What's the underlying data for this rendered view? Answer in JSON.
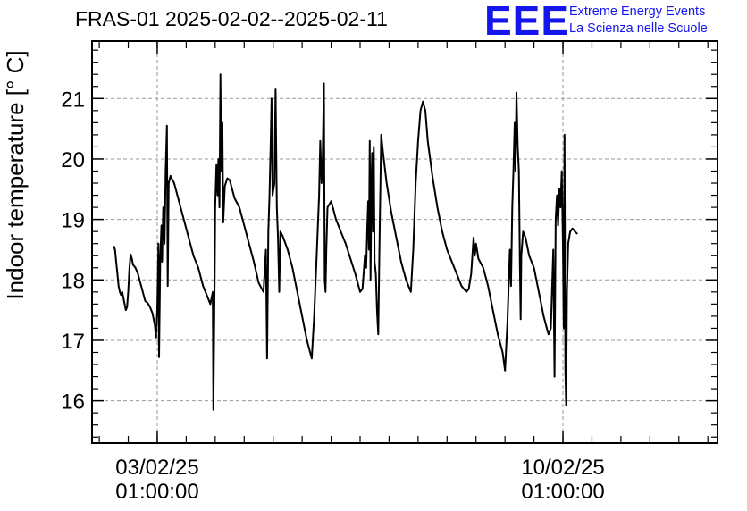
{
  "header": {
    "title": "FRAS-01 2025-02-02--2025-02-11",
    "logo_mark": "EEE",
    "logo_line1": "Extreme Energy Events",
    "logo_line2": "La Scienza nelle Scuole"
  },
  "colors": {
    "line": "#000000",
    "grid": "#999999",
    "logo": "#1515ee"
  },
  "chart_data": {
    "type": "line",
    "title": "FRAS-01 2025-02-02--2025-02-11",
    "ylabel": "Indoor temperature [° C]",
    "xlabel": "",
    "ylim": [
      15.3,
      21.95
    ],
    "xlim": [
      "2025-02-01T22:00",
      "2025-02-12T17:00"
    ],
    "yticks": [
      16,
      17,
      18,
      19,
      20,
      21
    ],
    "ytick_labels": [
      "16",
      "17",
      "18",
      "19",
      "20",
      "21"
    ],
    "xticks": [
      {
        "x": "2025-02-03T01:00",
        "line1": "03/02/25",
        "line2": "01:00:00"
      },
      {
        "x": "2025-02-10T01:00",
        "line1": "10/02/25",
        "line2": "01:00:00"
      }
    ],
    "grid": true,
    "series": [
      {
        "points": [
          [
            "2025-02-02T07:00",
            18.56
          ],
          [
            "2025-02-02T07:30",
            18.5
          ],
          [
            "2025-02-02T08:00",
            18.3
          ],
          [
            "2025-02-02T08:30",
            18.1
          ],
          [
            "2025-02-02T09:00",
            17.9
          ],
          [
            "2025-02-02T09:30",
            17.8
          ],
          [
            "2025-02-02T10:00",
            17.75
          ],
          [
            "2025-02-02T10:30",
            17.8
          ],
          [
            "2025-02-02T11:00",
            17.7
          ],
          [
            "2025-02-02T11:30",
            17.6
          ],
          [
            "2025-02-02T12:00",
            17.5
          ],
          [
            "2025-02-02T12:30",
            17.55
          ],
          [
            "2025-02-02T13:00",
            17.8
          ],
          [
            "2025-02-02T13:30",
            18.2
          ],
          [
            "2025-02-02T14:00",
            18.42
          ],
          [
            "2025-02-02T14:30",
            18.35
          ],
          [
            "2025-02-02T15:00",
            18.25
          ],
          [
            "2025-02-02T16:00",
            18.2
          ],
          [
            "2025-02-02T17:00",
            18.1
          ],
          [
            "2025-02-02T18:00",
            17.95
          ],
          [
            "2025-02-02T19:00",
            17.8
          ],
          [
            "2025-02-02T20:00",
            17.65
          ],
          [
            "2025-02-02T21:00",
            17.62
          ],
          [
            "2025-02-02T22:00",
            17.55
          ],
          [
            "2025-02-02T23:00",
            17.45
          ],
          [
            "2025-02-03T00:00",
            17.25
          ],
          [
            "2025-02-03T00:30",
            17.05
          ],
          [
            "2025-02-03T01:00",
            17.5
          ],
          [
            "2025-02-03T01:30",
            18.6
          ],
          [
            "2025-02-03T01:45",
            16.72
          ],
          [
            "2025-02-03T02:15",
            18.4
          ],
          [
            "2025-02-03T02:45",
            18.9
          ],
          [
            "2025-02-03T03:00",
            18.3
          ],
          [
            "2025-02-03T03:30",
            19.2
          ],
          [
            "2025-02-03T04:00",
            18.6
          ],
          [
            "2025-02-03T04:30",
            19.8
          ],
          [
            "2025-02-03T05:00",
            20.55
          ],
          [
            "2025-02-03T05:20",
            17.9
          ],
          [
            "2025-02-03T05:45",
            19.6
          ],
          [
            "2025-02-03T06:30",
            19.72
          ],
          [
            "2025-02-03T08:00",
            19.6
          ],
          [
            "2025-02-03T10:00",
            19.3
          ],
          [
            "2025-02-03T12:00",
            19.0
          ],
          [
            "2025-02-03T14:00",
            18.7
          ],
          [
            "2025-02-03T16:00",
            18.4
          ],
          [
            "2025-02-03T18:00",
            18.2
          ],
          [
            "2025-02-03T20:00",
            17.9
          ],
          [
            "2025-02-03T22:00",
            17.7
          ],
          [
            "2025-02-03T23:00",
            17.6
          ],
          [
            "2025-02-04T00:00",
            17.8
          ],
          [
            "2025-02-04T00:15",
            15.85
          ],
          [
            "2025-02-04T00:45",
            18.0
          ],
          [
            "2025-02-04T01:00",
            19.2
          ],
          [
            "2025-02-04T01:30",
            19.9
          ],
          [
            "2025-02-04T02:00",
            19.4
          ],
          [
            "2025-02-04T02:20",
            20.0
          ],
          [
            "2025-02-04T02:45",
            19.2
          ],
          [
            "2025-02-04T03:10",
            21.4
          ],
          [
            "2025-02-04T03:30",
            19.8
          ],
          [
            "2025-02-04T04:00",
            20.6
          ],
          [
            "2025-02-04T04:20",
            18.95
          ],
          [
            "2025-02-04T05:00",
            19.55
          ],
          [
            "2025-02-04T06:00",
            19.68
          ],
          [
            "2025-02-04T07:00",
            19.65
          ],
          [
            "2025-02-04T09:00",
            19.35
          ],
          [
            "2025-02-04T11:00",
            19.2
          ],
          [
            "2025-02-04T13:00",
            18.9
          ],
          [
            "2025-02-04T15:00",
            18.6
          ],
          [
            "2025-02-04T17:00",
            18.3
          ],
          [
            "2025-02-04T19:00",
            17.95
          ],
          [
            "2025-02-04T21:00",
            17.8
          ],
          [
            "2025-02-04T22:00",
            18.5
          ],
          [
            "2025-02-04T22:30",
            16.7
          ],
          [
            "2025-02-04T23:00",
            18.8
          ],
          [
            "2025-02-04T23:30",
            19.4
          ],
          [
            "2025-02-05T00:00",
            20.3
          ],
          [
            "2025-02-05T00:20",
            21.0
          ],
          [
            "2025-02-05T00:45",
            19.4
          ],
          [
            "2025-02-05T01:30",
            19.6
          ],
          [
            "2025-02-05T02:00",
            21.15
          ],
          [
            "2025-02-05T02:30",
            19.2
          ],
          [
            "2025-02-05T03:00",
            18.7
          ],
          [
            "2025-02-05T03:30",
            17.8
          ],
          [
            "2025-02-05T04:00",
            18.8
          ],
          [
            "2025-02-05T05:00",
            18.72
          ],
          [
            "2025-02-05T07:00",
            18.5
          ],
          [
            "2025-02-05T09:00",
            18.2
          ],
          [
            "2025-02-05T11:00",
            17.8
          ],
          [
            "2025-02-05T13:00",
            17.4
          ],
          [
            "2025-02-05T15:00",
            17.0
          ],
          [
            "2025-02-05T17:00",
            16.7
          ],
          [
            "2025-02-05T18:00",
            17.4
          ],
          [
            "2025-02-05T19:00",
            18.4
          ],
          [
            "2025-02-05T20:00",
            19.4
          ],
          [
            "2025-02-05T20:30",
            20.3
          ],
          [
            "2025-02-05T21:00",
            19.6
          ],
          [
            "2025-02-05T21:30",
            20.0
          ],
          [
            "2025-02-05T22:00",
            21.25
          ],
          [
            "2025-02-05T22:20",
            18.0
          ],
          [
            "2025-02-05T22:40",
            17.8
          ],
          [
            "2025-02-05T23:00",
            18.5
          ],
          [
            "2025-02-05T23:30",
            19.2
          ],
          [
            "2025-02-06T01:00",
            19.3
          ],
          [
            "2025-02-06T03:00",
            19.0
          ],
          [
            "2025-02-06T05:00",
            18.8
          ],
          [
            "2025-02-06T07:00",
            18.6
          ],
          [
            "2025-02-06T09:00",
            18.35
          ],
          [
            "2025-02-06T11:00",
            18.1
          ],
          [
            "2025-02-06T13:00",
            17.8
          ],
          [
            "2025-02-06T14:00",
            17.85
          ],
          [
            "2025-02-06T15:00",
            18.4
          ],
          [
            "2025-02-06T15:30",
            18.2
          ],
          [
            "2025-02-06T16:00",
            18.9
          ],
          [
            "2025-02-06T16:20",
            19.3
          ],
          [
            "2025-02-06T16:40",
            18.5
          ],
          [
            "2025-02-06T17:00",
            20.3
          ],
          [
            "2025-02-06T17:20",
            18.0
          ],
          [
            "2025-02-06T17:40",
            19.5
          ],
          [
            "2025-02-06T18:00",
            20.1
          ],
          [
            "2025-02-06T18:20",
            18.8
          ],
          [
            "2025-02-06T18:40",
            20.2
          ],
          [
            "2025-02-06T19:00",
            18.3
          ],
          [
            "2025-02-06T19:30",
            18.1
          ],
          [
            "2025-02-06T20:00",
            17.5
          ],
          [
            "2025-02-06T20:30",
            17.1
          ],
          [
            "2025-02-06T21:00",
            18.5
          ],
          [
            "2025-02-06T21:45",
            20.4
          ],
          [
            "2025-02-06T22:30",
            20.1
          ],
          [
            "2025-02-07T00:00",
            19.6
          ],
          [
            "2025-02-07T02:00",
            19.1
          ],
          [
            "2025-02-07T04:00",
            18.7
          ],
          [
            "2025-02-07T06:00",
            18.3
          ],
          [
            "2025-02-07T08:00",
            18.0
          ],
          [
            "2025-02-07T10:00",
            17.8
          ],
          [
            "2025-02-07T11:00",
            18.5
          ],
          [
            "2025-02-07T12:00",
            19.6
          ],
          [
            "2025-02-07T13:00",
            20.3
          ],
          [
            "2025-02-07T14:00",
            20.8
          ],
          [
            "2025-02-07T15:00",
            20.95
          ],
          [
            "2025-02-07T16:00",
            20.8
          ],
          [
            "2025-02-07T17:00",
            20.3
          ],
          [
            "2025-02-07T19:00",
            19.7
          ],
          [
            "2025-02-07T21:00",
            19.2
          ],
          [
            "2025-02-07T23:00",
            18.8
          ],
          [
            "2025-02-08T01:00",
            18.5
          ],
          [
            "2025-02-08T03:00",
            18.3
          ],
          [
            "2025-02-08T05:00",
            18.1
          ],
          [
            "2025-02-08T07:00",
            17.9
          ],
          [
            "2025-02-08T09:00",
            17.8
          ],
          [
            "2025-02-08T10:00",
            17.85
          ],
          [
            "2025-02-08T11:00",
            18.1
          ],
          [
            "2025-02-08T12:00",
            18.7
          ],
          [
            "2025-02-08T12:30",
            18.4
          ],
          [
            "2025-02-08T13:00",
            18.6
          ],
          [
            "2025-02-08T14:00",
            18.35
          ],
          [
            "2025-02-08T16:00",
            18.2
          ],
          [
            "2025-02-08T18:00",
            17.9
          ],
          [
            "2025-02-08T20:00",
            17.5
          ],
          [
            "2025-02-08T22:00",
            17.1
          ],
          [
            "2025-02-09T00:00",
            16.8
          ],
          [
            "2025-02-09T01:00",
            16.5
          ],
          [
            "2025-02-09T02:00",
            17.3
          ],
          [
            "2025-02-09T03:00",
            18.5
          ],
          [
            "2025-02-09T03:30",
            17.9
          ],
          [
            "2025-02-09T04:00",
            19.2
          ],
          [
            "2025-02-09T04:30",
            19.8
          ],
          [
            "2025-02-09T05:00",
            20.6
          ],
          [
            "2025-02-09T05:20",
            19.8
          ],
          [
            "2025-02-09T05:45",
            21.1
          ],
          [
            "2025-02-09T06:15",
            20.2
          ],
          [
            "2025-02-09T06:45",
            19.8
          ],
          [
            "2025-02-09T07:10",
            18.3
          ],
          [
            "2025-02-09T07:30",
            17.35
          ],
          [
            "2025-02-09T07:45",
            18.4
          ],
          [
            "2025-02-09T08:30",
            18.8
          ],
          [
            "2025-02-09T09:30",
            18.7
          ],
          [
            "2025-02-09T11:00",
            18.4
          ],
          [
            "2025-02-09T13:00",
            18.2
          ],
          [
            "2025-02-09T15:00",
            17.8
          ],
          [
            "2025-02-09T17:00",
            17.4
          ],
          [
            "2025-02-09T19:00",
            17.1
          ],
          [
            "2025-02-09T20:00",
            17.2
          ],
          [
            "2025-02-09T21:00",
            18.5
          ],
          [
            "2025-02-09T21:30",
            16.4
          ],
          [
            "2025-02-09T22:00",
            19.0
          ],
          [
            "2025-02-09T22:30",
            19.4
          ],
          [
            "2025-02-09T23:00",
            18.9
          ],
          [
            "2025-02-09T23:30",
            19.5
          ],
          [
            "2025-02-10T00:00",
            19.2
          ],
          [
            "2025-02-10T00:30",
            19.8
          ],
          [
            "2025-02-10T01:00",
            18.6
          ],
          [
            "2025-02-10T01:20",
            17.2
          ],
          [
            "2025-02-10T01:40",
            20.4
          ],
          [
            "2025-02-10T02:00",
            16.5
          ],
          [
            "2025-02-10T02:20",
            15.92
          ],
          [
            "2025-02-10T02:40",
            17.8
          ],
          [
            "2025-02-10T03:10",
            18.6
          ],
          [
            "2025-02-10T04:00",
            18.8
          ],
          [
            "2025-02-10T05:00",
            18.85
          ],
          [
            "2025-02-10T06:00",
            18.8
          ],
          [
            "2025-02-10T07:00",
            18.76
          ]
        ]
      }
    ]
  }
}
